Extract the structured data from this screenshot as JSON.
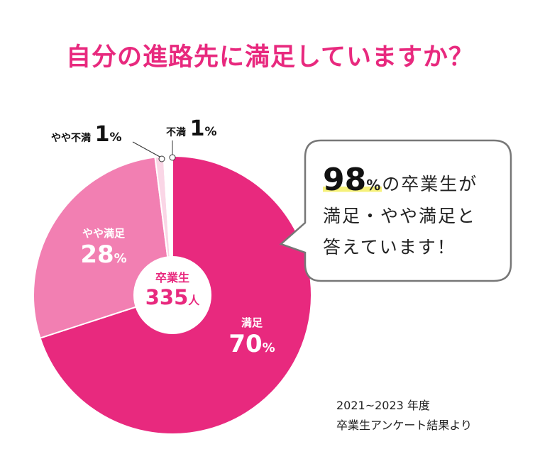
{
  "title": "自分の進路先に満足していますか？",
  "chart_data": {
    "type": "pie",
    "title": "自分の進路先に満足していますか？",
    "center_label": {
      "line1": "卒業生",
      "count": "335",
      "unit": "人"
    },
    "slices": [
      {
        "label": "満足",
        "value": 70,
        "display": "70",
        "color": "#e8297e"
      },
      {
        "label": "やや満足",
        "value": 28,
        "display": "28",
        "color": "#f27fb2"
      },
      {
        "label": "やや不満",
        "value": 1,
        "display": "1",
        "color": "#fad6e6"
      },
      {
        "label": "不満",
        "value": 1,
        "display": "1",
        "color": "#ffffff"
      }
    ],
    "percent_symbol": "%"
  },
  "callout": {
    "big": "98",
    "pct": "%",
    "line1_rest": "の卒業生が",
    "line2": "満足・やや満足と",
    "line3": "答えています！"
  },
  "source": {
    "line1": "2021~2023 年度",
    "line2": "卒業生アンケート結果より"
  }
}
